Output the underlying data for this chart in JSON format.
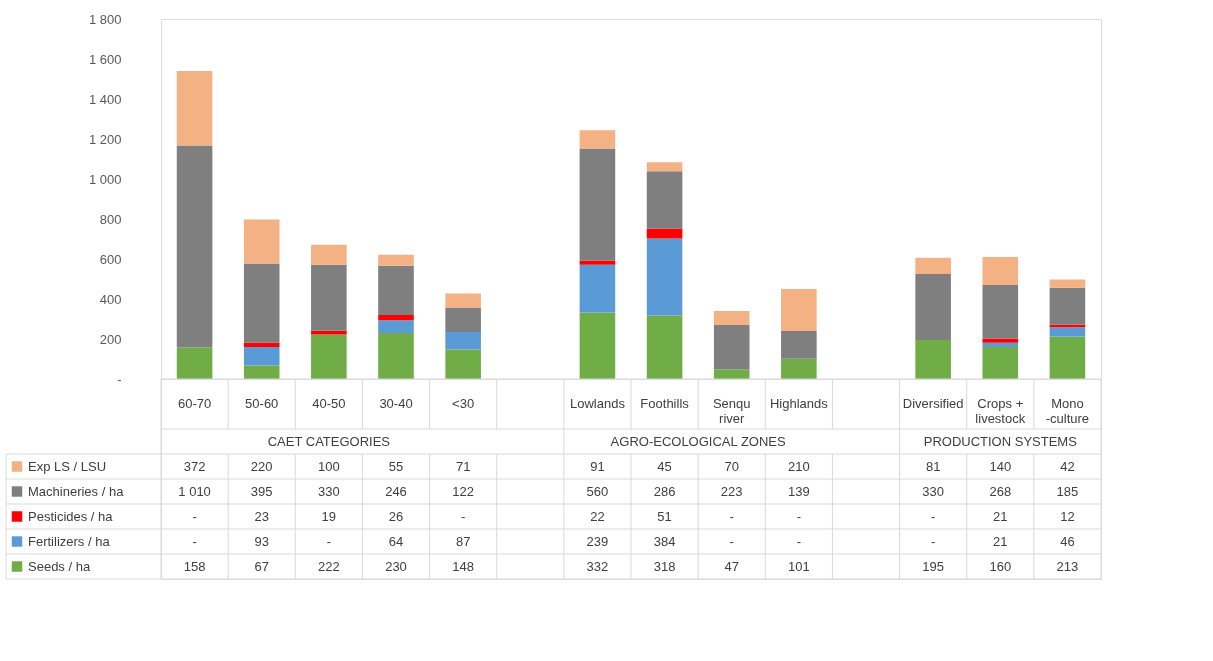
{
  "chart_data": {
    "type": "bar",
    "stacked": true,
    "legend": "bottom left",
    "grid": false,
    "categories": [
      "60-70",
      "50-60",
      "40-50",
      "30-40",
      "<30",
      null,
      "Lowlands",
      "Foothills",
      "Senqu river",
      "Highlands",
      null,
      "Diversified",
      "Crops + livestock",
      "Mono -culture"
    ],
    "series": [
      {
        "name": "Seeds / ha",
        "color": "#70ad47",
        "values": [
          158,
          67,
          222,
          230,
          148,
          null,
          332,
          318,
          47,
          101,
          null,
          195,
          160,
          213
        ],
        "value_labels": [
          "158",
          "67",
          "222",
          "230",
          "148",
          null,
          "332",
          "318",
          "47",
          "101",
          null,
          "195",
          "160",
          "213"
        ]
      },
      {
        "name": "Fertilizers / ha",
        "color": "#5b9bd5",
        "values": [
          null,
          93,
          null,
          64,
          87,
          null,
          239,
          384,
          null,
          null,
          null,
          null,
          21,
          46
        ],
        "value_labels": [
          "-",
          "93",
          "-",
          "64",
          "87",
          null,
          "239",
          "384",
          "-",
          "-",
          null,
          "-",
          "21",
          "46"
        ]
      },
      {
        "name": "Pesticides / ha",
        "color": "#ff0000",
        "values": [
          null,
          23,
          19,
          26,
          null,
          null,
          22,
          51,
          null,
          null,
          null,
          null,
          21,
          12
        ],
        "value_labels": [
          "-",
          "23",
          "19",
          "26",
          "-",
          null,
          "22",
          "51",
          "-",
          "-",
          null,
          "-",
          "21",
          "12"
        ]
      },
      {
        "name": "Machineries / ha",
        "color": "#7f7f7f",
        "values": [
          1010,
          395,
          330,
          246,
          122,
          null,
          560,
          286,
          223,
          139,
          null,
          330,
          268,
          185
        ],
        "value_labels": [
          "1 010",
          "395",
          "330",
          "246",
          "122",
          null,
          "560",
          "286",
          "223",
          "139",
          null,
          "330",
          "268",
          "185"
        ]
      },
      {
        "name": "Exp LS / LSU",
        "color": "#f4b183",
        "values": [
          372,
          220,
          100,
          55,
          71,
          null,
          91,
          45,
          70,
          210,
          null,
          81,
          140,
          42
        ],
        "value_labels": [
          "372",
          "220",
          "100",
          "55",
          "71",
          null,
          "91",
          "45",
          "70",
          "210",
          null,
          "81",
          "140",
          "42"
        ]
      }
    ],
    "ylim": [
      0,
      1800
    ],
    "yticks": [
      {
        "value": 0,
        "label": "-"
      },
      200,
      400,
      600,
      800,
      {
        "value": 1000,
        "label": "1 000"
      },
      {
        "value": 1200,
        "label": "1 200"
      },
      {
        "value": 1400,
        "label": "1 400"
      },
      {
        "value": 1600,
        "label": "1 600"
      },
      {
        "value": 1800,
        "label": "1 800"
      }
    ],
    "annotations": [
      "CAET CATEGORIES",
      "AGRO-ECOLOGICAL ZONES",
      "PRODUCTION SYSTEMS"
    ]
  }
}
